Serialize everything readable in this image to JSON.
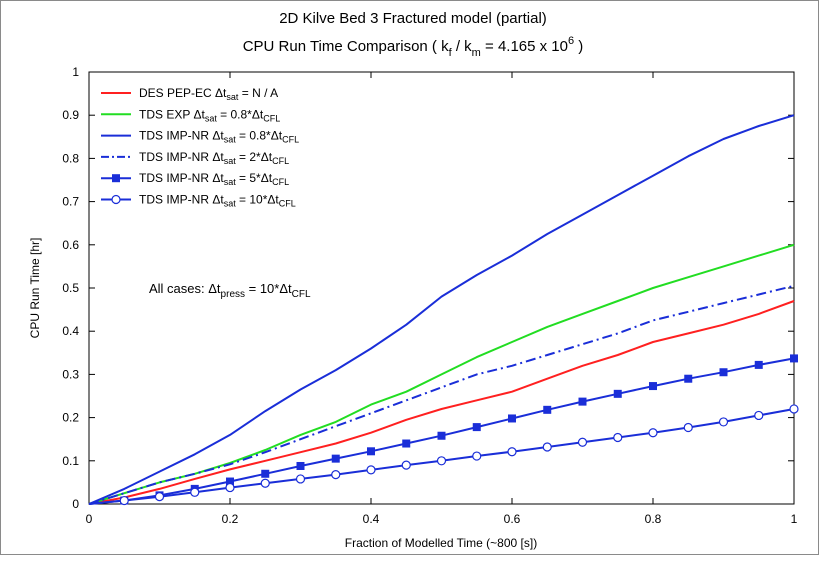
{
  "chart_data": {
    "type": "line",
    "title_line1": "2D Kilve Bed 3 Fractured model (partial)",
    "title_line2": "CPU Run Time Comparison ( k",
    "title_k_f_sub": "f",
    "title_slash": " / k",
    "title_k_m_sub": "m",
    "title_eq": " = 4.165 x 10",
    "title_exp": "6",
    "title_end": " )",
    "xlabel": "Fraction of Modelled Time (~800 [s])",
    "ylabel": "CPU Run Time [hr]",
    "xlim": [
      0,
      1
    ],
    "ylim": [
      0,
      1
    ],
    "x_ticks": [
      0,
      0.2,
      0.4,
      0.6,
      0.8,
      1
    ],
    "x_tick_labels": [
      "0",
      "0.2",
      "0.4",
      "0.6",
      "0.8",
      "1"
    ],
    "y_ticks": [
      0,
      0.1,
      0.2,
      0.3,
      0.4,
      0.5,
      0.6,
      0.7,
      0.8,
      0.9,
      1
    ],
    "y_tick_labels": [
      "0",
      "0.1",
      "0.2",
      "0.3",
      "0.4",
      "0.5",
      "0.6",
      "0.7",
      "0.8",
      "0.9",
      "1"
    ],
    "grid": false,
    "legend_position": "top-left",
    "annotation": {
      "prefix": "All cases: Δt",
      "sub1": "press",
      "mid": " = 10*Δt",
      "sub2": "CFL"
    },
    "series": [
      {
        "name_prefix": "DES PEP-EC  Δt",
        "name_sub": "sat",
        "name_rest": " = N / A",
        "name_sub2": "",
        "color": "#ff2020",
        "style": "solid",
        "marker": "none",
        "x": [
          0,
          0.05,
          0.1,
          0.15,
          0.2,
          0.25,
          0.3,
          0.35,
          0.4,
          0.45,
          0.5,
          0.55,
          0.6,
          0.65,
          0.7,
          0.75,
          0.8,
          0.85,
          0.9,
          0.95,
          1.0
        ],
        "y": [
          0,
          0.015,
          0.035,
          0.058,
          0.08,
          0.1,
          0.12,
          0.14,
          0.165,
          0.195,
          0.22,
          0.24,
          0.26,
          0.29,
          0.32,
          0.345,
          0.375,
          0.395,
          0.415,
          0.44,
          0.47
        ]
      },
      {
        "name_prefix": "TDS EXP       Δt",
        "name_sub": "sat",
        "name_rest": " = 0.8*Δt",
        "name_sub2": "CFL",
        "color": "#22dd22",
        "style": "solid",
        "marker": "none",
        "x": [
          0,
          0.05,
          0.1,
          0.15,
          0.2,
          0.25,
          0.3,
          0.35,
          0.4,
          0.45,
          0.5,
          0.55,
          0.6,
          0.65,
          0.7,
          0.75,
          0.8,
          0.85,
          0.9,
          0.95,
          1.0
        ],
        "y": [
          0,
          0.025,
          0.05,
          0.07,
          0.095,
          0.125,
          0.16,
          0.19,
          0.23,
          0.26,
          0.3,
          0.34,
          0.375,
          0.41,
          0.44,
          0.47,
          0.5,
          0.525,
          0.55,
          0.575,
          0.6
        ]
      },
      {
        "name_prefix": "TDS IMP-NR  Δt",
        "name_sub": "sat",
        "name_rest": " = 0.8*Δt",
        "name_sub2": "CFL",
        "color": "#1a2ed8",
        "style": "solid",
        "marker": "none",
        "x": [
          0,
          0.05,
          0.1,
          0.15,
          0.2,
          0.25,
          0.3,
          0.35,
          0.4,
          0.45,
          0.5,
          0.55,
          0.6,
          0.65,
          0.7,
          0.75,
          0.8,
          0.85,
          0.9,
          0.95,
          1.0
        ],
        "y": [
          0,
          0.035,
          0.075,
          0.115,
          0.16,
          0.215,
          0.265,
          0.31,
          0.36,
          0.415,
          0.48,
          0.53,
          0.575,
          0.625,
          0.67,
          0.715,
          0.76,
          0.805,
          0.845,
          0.875,
          0.9
        ]
      },
      {
        "name_prefix": "TDS IMP-NR  Δt",
        "name_sub": "sat",
        "name_rest": " =    2*Δt",
        "name_sub2": "CFL",
        "color": "#1a2ed8",
        "style": "dashdot",
        "marker": "none",
        "x": [
          0,
          0.05,
          0.1,
          0.15,
          0.2,
          0.25,
          0.3,
          0.35,
          0.4,
          0.45,
          0.5,
          0.55,
          0.6,
          0.65,
          0.7,
          0.75,
          0.8,
          0.85,
          0.9,
          0.95,
          1.0
        ],
        "y": [
          0,
          0.025,
          0.05,
          0.07,
          0.092,
          0.12,
          0.15,
          0.18,
          0.21,
          0.24,
          0.27,
          0.3,
          0.32,
          0.345,
          0.37,
          0.395,
          0.425,
          0.445,
          0.465,
          0.485,
          0.505
        ]
      },
      {
        "name_prefix": "TDS IMP-NR  Δt",
        "name_sub": "sat",
        "name_rest": " =    5*Δt",
        "name_sub2": "CFL",
        "color": "#1a2ed8",
        "style": "solid",
        "marker": "square",
        "x": [
          0,
          0.05,
          0.1,
          0.15,
          0.2,
          0.25,
          0.3,
          0.35,
          0.4,
          0.45,
          0.5,
          0.55,
          0.6,
          0.65,
          0.7,
          0.75,
          0.8,
          0.85,
          0.9,
          0.95,
          1.0
        ],
        "y": [
          0,
          0.008,
          0.02,
          0.035,
          0.052,
          0.07,
          0.088,
          0.105,
          0.122,
          0.14,
          0.158,
          0.178,
          0.198,
          0.218,
          0.237,
          0.255,
          0.273,
          0.29,
          0.305,
          0.322,
          0.337
        ]
      },
      {
        "name_prefix": "TDS IMP-NR  Δt",
        "name_sub": "sat",
        "name_rest": " = 10*Δt",
        "name_sub2": "CFL",
        "color": "#1a2ed8",
        "style": "solid",
        "marker": "circle",
        "x": [
          0,
          0.05,
          0.1,
          0.15,
          0.2,
          0.25,
          0.3,
          0.35,
          0.4,
          0.45,
          0.5,
          0.55,
          0.6,
          0.65,
          0.7,
          0.75,
          0.8,
          0.85,
          0.9,
          0.95,
          1.0
        ],
        "y": [
          0,
          0.008,
          0.017,
          0.027,
          0.038,
          0.048,
          0.058,
          0.068,
          0.079,
          0.09,
          0.1,
          0.111,
          0.121,
          0.132,
          0.143,
          0.154,
          0.165,
          0.177,
          0.19,
          0.205,
          0.22
        ]
      }
    ]
  }
}
